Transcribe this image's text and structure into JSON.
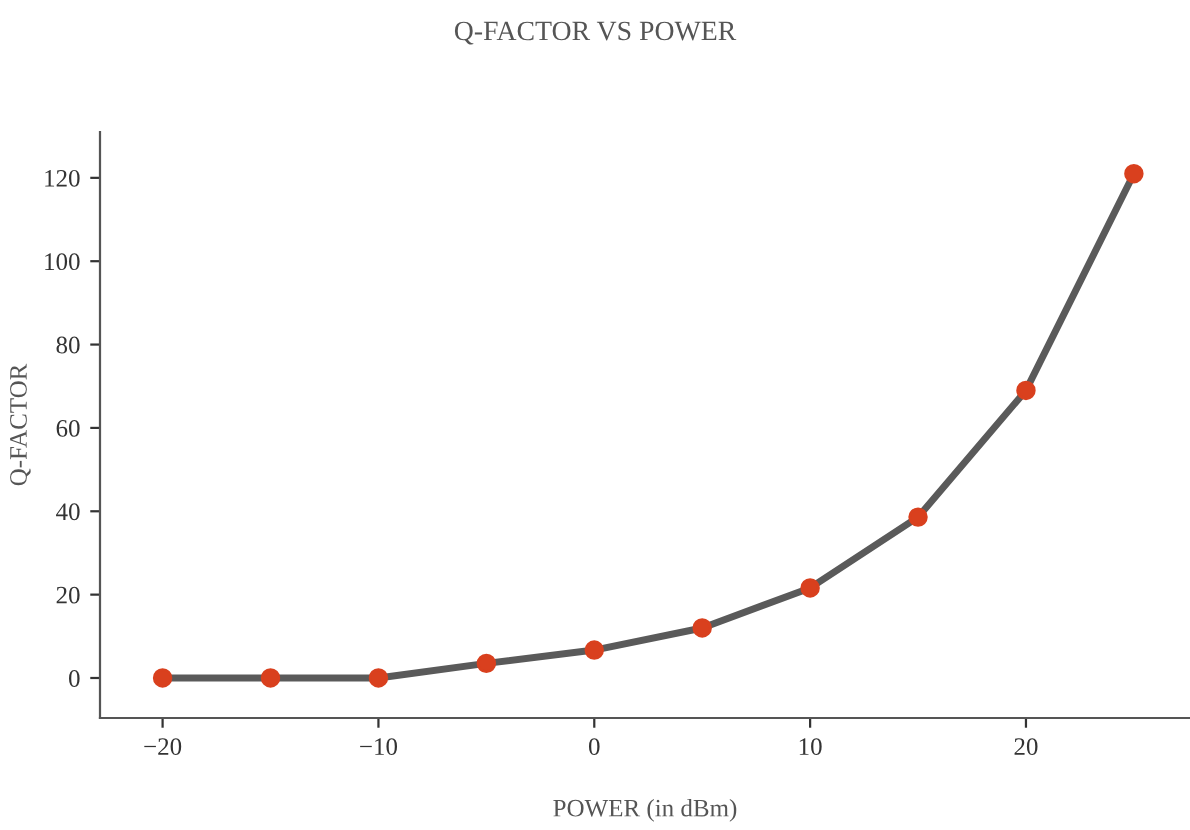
{
  "chart_data": {
    "type": "line",
    "title": "Q-FACTOR VS POWER",
    "xlabel": "POWER (in dBm)",
    "ylabel": "Q-FACTOR",
    "x": [
      -20,
      -15,
      -10,
      -5,
      0,
      5,
      10,
      15,
      20,
      25
    ],
    "series": [
      {
        "color": "#5a5a5a",
        "colors": [
          "#d9401e",
          "#d9401e",
          "#d9401e",
          "#d9401e",
          "#d9401e",
          "#d9401e",
          "#d9401e",
          "#d9401e",
          "#d9401e",
          "#d9401e"
        ],
        "values": [
          0,
          0,
          0,
          3.5,
          6.7,
          12,
          21.6,
          38.6,
          69,
          121
        ]
      }
    ],
    "marker": "circle",
    "line_style": "solid",
    "grid": false,
    "legend": false,
    "xlim": [
      -22.9,
      27.6
    ],
    "ylim": [
      -9.6,
      131
    ],
    "xticks": [
      -20,
      -10,
      0,
      10,
      20
    ],
    "yticks": [
      0,
      20,
      40,
      60,
      80,
      100,
      120
    ]
  }
}
